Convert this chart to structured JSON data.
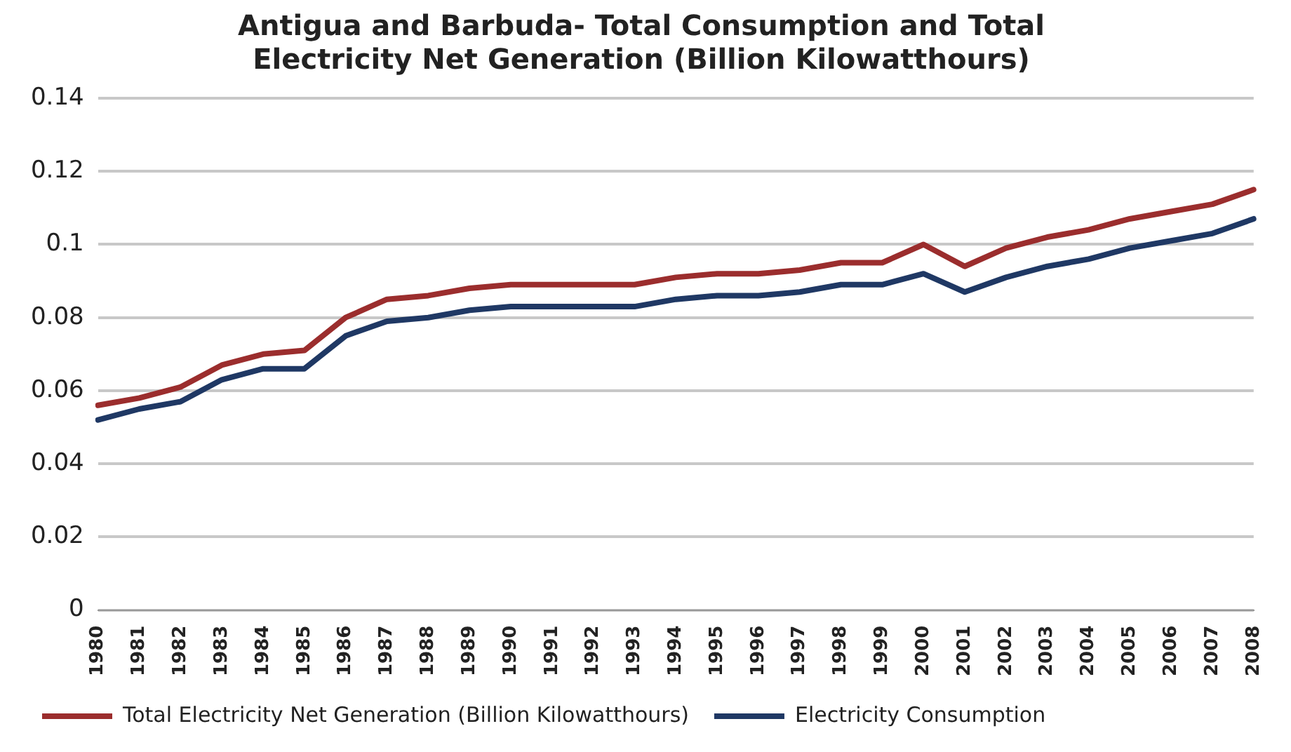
{
  "chart_data": {
    "type": "line",
    "title": "Antigua and Barbuda- Total Consumption and Total Electricity Net Generation (Billion Kilowatthours)",
    "categories": [
      "1980",
      "1981",
      "1982",
      "1983",
      "1984",
      "1985",
      "1986",
      "1987",
      "1988",
      "1989",
      "1990",
      "1991",
      "1992",
      "1993",
      "1994",
      "1995",
      "1996",
      "1997",
      "1998",
      "1999",
      "2000",
      "2001",
      "2002",
      "2003",
      "2004",
      "2005",
      "2006",
      "2007",
      "2008"
    ],
    "series": [
      {
        "name": "Total Electricity Net Generation (Billion Kilowatthours)",
        "color": "#9b2d2d",
        "values": [
          0.056,
          0.058,
          0.061,
          0.067,
          0.07,
          0.071,
          0.08,
          0.085,
          0.086,
          0.088,
          0.089,
          0.089,
          0.089,
          0.089,
          0.091,
          0.092,
          0.092,
          0.093,
          0.095,
          0.095,
          0.1,
          0.094,
          0.099,
          0.102,
          0.104,
          0.107,
          0.109,
          0.111,
          0.115
        ]
      },
      {
        "name": "Electricity Consumption",
        "color": "#1f3864",
        "values": [
          0.052,
          0.055,
          0.057,
          0.063,
          0.066,
          0.066,
          0.075,
          0.079,
          0.08,
          0.082,
          0.083,
          0.083,
          0.083,
          0.083,
          0.085,
          0.086,
          0.086,
          0.087,
          0.089,
          0.089,
          0.092,
          0.087,
          0.091,
          0.094,
          0.096,
          0.099,
          0.101,
          0.103,
          0.107
        ]
      }
    ],
    "ylim": [
      0,
      0.14
    ],
    "yticks": [
      0,
      0.02,
      0.04,
      0.06,
      0.08,
      0.1,
      0.12,
      0.14
    ],
    "grid": "y",
    "legend": "bottom",
    "marker": "none",
    "line_style": "solid"
  }
}
